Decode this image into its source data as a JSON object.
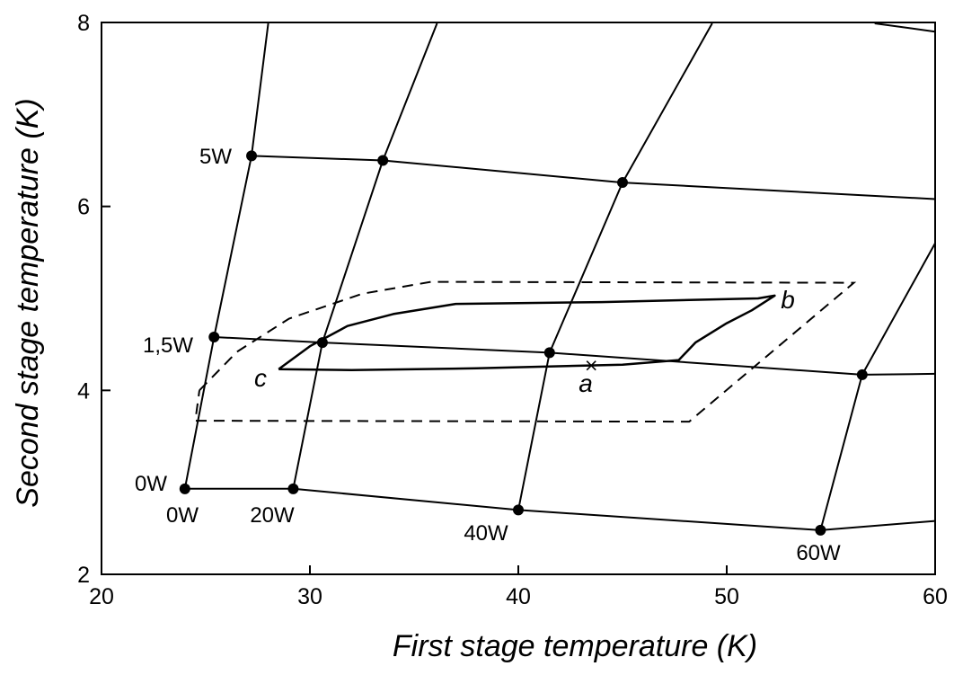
{
  "chart_data": {
    "type": "line",
    "xlabel": "First stage temperature (K)",
    "ylabel": "Second stage temperature (K)",
    "xlim": [
      20,
      60
    ],
    "ylim": [
      2,
      8
    ],
    "x_ticks": [
      20,
      30,
      40,
      50,
      60
    ],
    "y_ticks": [
      2,
      4,
      6,
      8
    ],
    "x_tick_labels": [
      "20",
      "30",
      "40",
      "50",
      "60"
    ],
    "y_tick_labels": [
      "2",
      "4",
      "6",
      "8"
    ],
    "grid": false,
    "legend": "none",
    "series": [
      {
        "kind": "second-stage-load",
        "label": "0W",
        "points": [
          [
            24.0,
            2.93
          ],
          [
            29.2,
            2.93
          ],
          [
            40.0,
            2.7
          ],
          [
            54.5,
            2.48
          ],
          [
            60.0,
            2.58
          ]
        ]
      },
      {
        "kind": "second-stage-load",
        "label": "1,5W",
        "points": [
          [
            25.4,
            4.58
          ],
          [
            30.6,
            4.52
          ],
          [
            41.5,
            4.41
          ],
          [
            56.5,
            4.17
          ],
          [
            60.0,
            4.18
          ]
        ]
      },
      {
        "kind": "second-stage-load",
        "label": "5W",
        "points": [
          [
            27.2,
            6.55
          ],
          [
            33.5,
            6.5
          ],
          [
            45.0,
            6.26
          ],
          [
            60.0,
            6.08
          ]
        ]
      },
      {
        "kind": "first-stage-load",
        "label": "0W",
        "points": [
          [
            24.0,
            2.93
          ],
          [
            25.4,
            4.58
          ],
          [
            27.2,
            6.55
          ],
          [
            28.0,
            7.99
          ]
        ]
      },
      {
        "kind": "first-stage-load",
        "label": "20W",
        "points": [
          [
            29.2,
            2.93
          ],
          [
            30.6,
            4.52
          ],
          [
            33.5,
            6.5
          ],
          [
            36.1,
            7.99
          ]
        ]
      },
      {
        "kind": "first-stage-load",
        "label": "40W",
        "points": [
          [
            40.0,
            2.7
          ],
          [
            41.5,
            4.41
          ],
          [
            45.0,
            6.26
          ],
          [
            49.3,
            7.99
          ]
        ]
      },
      {
        "kind": "first-stage-load",
        "label": "60W",
        "points": [
          [
            54.5,
            2.48
          ],
          [
            56.5,
            4.17
          ],
          [
            60.0,
            5.6
          ]
        ]
      },
      {
        "kind": "upper-edge",
        "label": "",
        "points": [
          [
            57.1,
            7.99
          ],
          [
            60.0,
            7.9
          ]
        ]
      }
    ],
    "operating_path": {
      "style": "solid",
      "points": [
        [
          28.5,
          4.23
        ],
        [
          30.0,
          4.48
        ],
        [
          31.8,
          4.7
        ],
        [
          34.0,
          4.83
        ],
        [
          37.0,
          4.94
        ],
        [
          44.0,
          4.96
        ],
        [
          51.5,
          5.0
        ],
        [
          52.3,
          5.03
        ],
        [
          51.2,
          4.87
        ],
        [
          50.0,
          4.73
        ],
        [
          48.5,
          4.52
        ],
        [
          47.7,
          4.33
        ],
        [
          45.0,
          4.28
        ],
        [
          38.0,
          4.24
        ],
        [
          32.0,
          4.22
        ],
        [
          28.5,
          4.23
        ]
      ]
    },
    "envelope": {
      "style": "dashed",
      "points": [
        [
          24.7,
          4.0
        ],
        [
          26.5,
          4.42
        ],
        [
          29.0,
          4.78
        ],
        [
          32.5,
          5.05
        ],
        [
          35.8,
          5.18
        ],
        [
          56.1,
          5.17
        ],
        [
          48.2,
          3.66
        ],
        [
          24.5,
          3.67
        ],
        [
          24.7,
          4.0
        ]
      ]
    },
    "points": [
      {
        "name": "a",
        "x": 43.5,
        "y": 4.27,
        "marker": "x"
      },
      {
        "name": "b",
        "x": 52.3,
        "y": 5.03,
        "marker": "none"
      },
      {
        "name": "c",
        "x": 28.5,
        "y": 4.23,
        "marker": "none"
      }
    ],
    "annotations": {
      "row_label_0w": "0W",
      "row_label_1_5w": "1,5W",
      "row_label_5w": "5W",
      "col_label_0w": "0W",
      "col_label_20w": "20W",
      "col_label_40w": "40W",
      "col_label_60w": "60W",
      "point_a": "a",
      "point_b": "b",
      "point_c": "c"
    }
  }
}
